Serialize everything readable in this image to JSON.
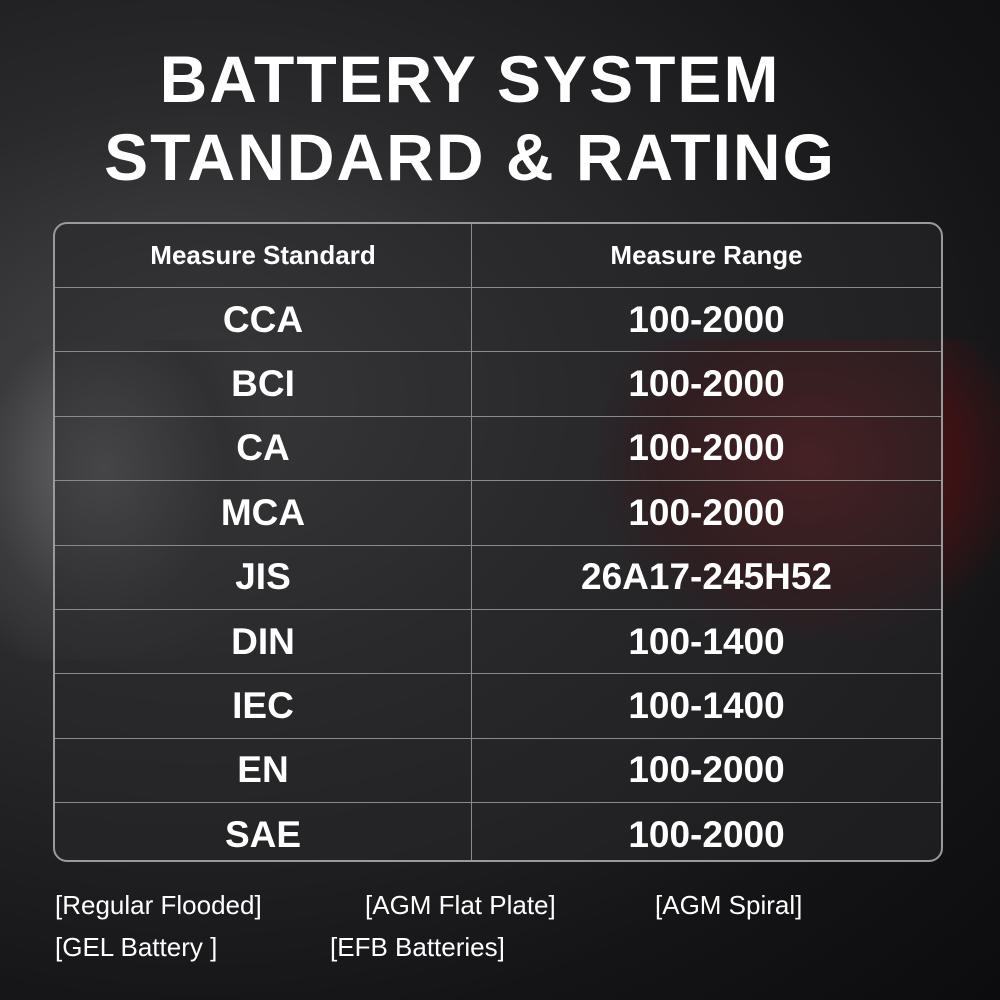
{
  "header": {
    "title_line1": "BATTERY SYSTEM",
    "title_line2": "STANDARD & RATING"
  },
  "table": {
    "columns": [
      "Measure Standard",
      "Measure Range"
    ],
    "rows": [
      [
        "CCA",
        "100-2000"
      ],
      [
        "BCI",
        "100-2000"
      ],
      [
        "CA",
        "100-2000"
      ],
      [
        "MCA",
        "100-2000"
      ],
      [
        "JIS",
        "26A17-245H52"
      ],
      [
        "DIN",
        "100-1400"
      ],
      [
        "IEC",
        "100-1400"
      ],
      [
        "EN",
        "100-2000"
      ],
      [
        "SAE",
        "100-2000"
      ]
    ]
  },
  "battery_types": [
    "[Regular Flooded]",
    "[AGM Flat Plate]",
    "[AGM Spiral]",
    "[GEL Battery ]",
    "[EFB Batteries]"
  ]
}
